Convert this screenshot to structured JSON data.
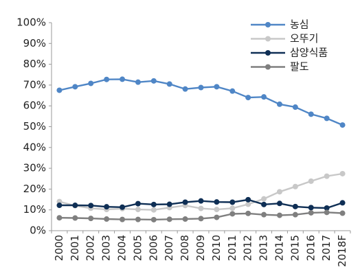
{
  "chart_data": {
    "type": "line",
    "title": "",
    "xlabel": "",
    "ylabel": "",
    "x": [
      "2000",
      "2001",
      "2002",
      "2003",
      "2004",
      "2005",
      "2006",
      "2007",
      "2008",
      "2009",
      "2010",
      "2011",
      "2012",
      "2013",
      "2014",
      "2015",
      "2016",
      "2017",
      "2018F"
    ],
    "ylim": [
      0,
      100
    ],
    "yticks": [
      "0%",
      "10%",
      "20%",
      "30%",
      "40%",
      "50%",
      "60%",
      "70%",
      "80%",
      "90%",
      "100%"
    ],
    "grid": false,
    "legend_position": "top-right",
    "series": [
      {
        "name": "농심",
        "color": "#4f86c6",
        "values": [
          67.5,
          69.2,
          70.8,
          72.7,
          72.8,
          71.4,
          72.0,
          70.5,
          68.1,
          68.8,
          69.2,
          67.1,
          64.0,
          64.3,
          60.8,
          59.4,
          56.0,
          54.0,
          50.8
        ]
      },
      {
        "name": "오뚜기",
        "color": "#c8c8c8",
        "values": [
          14.0,
          12.0,
          10.8,
          10.2,
          10.6,
          10.2,
          10.0,
          11.1,
          12.1,
          10.7,
          10.2,
          10.8,
          12.7,
          15.3,
          18.7,
          21.2,
          23.8,
          26.2,
          27.4
        ]
      },
      {
        "name": "삼양식품",
        "color": "#0f2f55",
        "values": [
          12.2,
          12.2,
          12.1,
          11.5,
          11.3,
          13.0,
          12.6,
          12.7,
          13.7,
          14.3,
          13.8,
          13.7,
          14.9,
          12.6,
          13.1,
          11.6,
          11.1,
          10.9,
          13.4
        ]
      },
      {
        "name": "팔도",
        "color": "#7f7f7f",
        "values": [
          6.2,
          6.1,
          5.9,
          5.6,
          5.4,
          5.4,
          5.3,
          5.5,
          5.6,
          5.8,
          6.4,
          8.1,
          8.3,
          7.7,
          7.4,
          7.7,
          8.6,
          8.8,
          8.4
        ]
      }
    ]
  }
}
